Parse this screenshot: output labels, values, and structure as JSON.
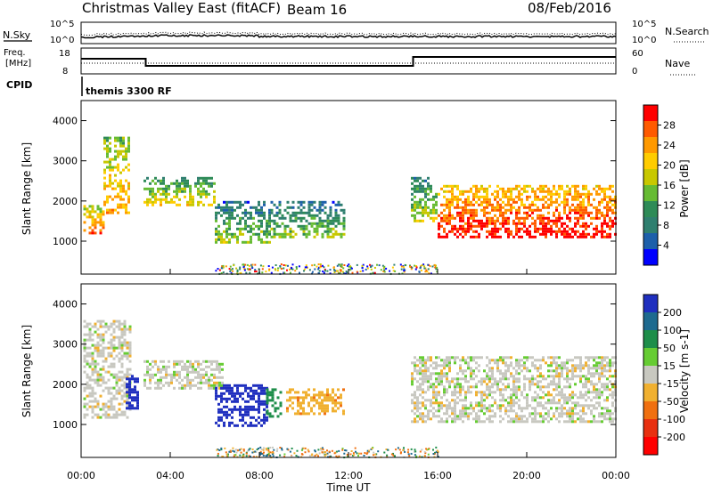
{
  "header": {
    "title": "Christmas Valley East (fitACF)",
    "beam": "Beam 16",
    "date": "08/Feb/2016"
  },
  "aux_panels": {
    "nsky_label": "N.Sky",
    "nsearch_label": "N.Search",
    "freq_label_1": "Freq.",
    "freq_label_2": "[MHz]",
    "nave_label": "Nave",
    "cpid_label": "CPID",
    "cpid_value": "themis 3300 RF",
    "noise_ticks": [
      "10^5",
      "10^0"
    ],
    "noise_ticks_right": [
      "10^5",
      "10^0"
    ],
    "freq_ticks": [
      "18",
      "8"
    ],
    "nave_ticks": [
      "60",
      "0"
    ]
  },
  "time_axis": {
    "label": "Time UT",
    "ticks": [
      "00:00",
      "04:00",
      "08:00",
      "12:00",
      "16:00",
      "20:00",
      "00:00"
    ]
  },
  "colorbars": {
    "power": {
      "label": "Power [dB]",
      "ticks": [
        "28",
        "24",
        "20",
        "16",
        "12",
        "8",
        "4"
      ],
      "colors": [
        "#ff0000",
        "#ff5a00",
        "#ff9900",
        "#ffcc00",
        "#c8c800",
        "#66bb33",
        "#2e8b57",
        "#2f7f6f",
        "#1d5faa",
        "#0000ff"
      ]
    },
    "velocity": {
      "label": "Velocity [m s-1]",
      "ticks": [
        "200",
        "100",
        "50",
        "15",
        "-15",
        "-50",
        "-100",
        "-200"
      ],
      "colors": [
        "#1f2fbf",
        "#1e6a8f",
        "#1e8e4a",
        "#66cc33",
        "#c8c8c0",
        "#f0b030",
        "#f07010",
        "#e83010",
        "#ff0000"
      ]
    }
  },
  "chart_data": [
    {
      "type": "heatmap",
      "title": "Power",
      "ylabel": "Slant Range [km]",
      "xlabel": "",
      "xlim": [
        0,
        24
      ],
      "ylim": [
        180,
        4500
      ],
      "y_ticks": [
        1000,
        2000,
        3000,
        4000
      ],
      "colorbar": {
        "label": "Power [dB]",
        "range": [
          0,
          30
        ]
      },
      "echo_bands": [
        {
          "t": [
            0.1,
            1.0
          ],
          "range_km": [
            1200,
            1900
          ],
          "power_db": 22
        },
        {
          "t": [
            1.0,
            2.2
          ],
          "range_km": [
            1700,
            3600
          ],
          "power_db": 20
        },
        {
          "t": [
            2.8,
            6.0
          ],
          "range_km": [
            1900,
            2600
          ],
          "power_db": 16
        },
        {
          "t": [
            6.0,
            8.5
          ],
          "range_km": [
            1000,
            2000
          ],
          "power_db": 12
        },
        {
          "t": [
            8.5,
            11.8
          ],
          "range_km": [
            1100,
            2000
          ],
          "power_db": 12
        },
        {
          "t": [
            14.8,
            16.0
          ],
          "range_km": [
            1500,
            2600
          ],
          "power_db": 14
        },
        {
          "t": [
            16.0,
            24.0
          ],
          "range_km": [
            1100,
            2400
          ],
          "power_db": 26
        }
      ]
    },
    {
      "type": "heatmap",
      "title": "Velocity",
      "ylabel": "Slant Range [km]",
      "xlabel": "Time UT",
      "xlim": [
        0,
        24
      ],
      "ylim": [
        180,
        4500
      ],
      "y_ticks": [
        1000,
        2000,
        3000,
        4000
      ],
      "colorbar": {
        "label": "Velocity [m s-1]",
        "range": [
          -200,
          200
        ]
      },
      "echo_bands": [
        {
          "t": [
            0.1,
            2.2
          ],
          "range_km": [
            1200,
            3600
          ],
          "velocity": 0
        },
        {
          "t": [
            2.0,
            2.6
          ],
          "range_km": [
            1400,
            2300
          ],
          "velocity": 220
        },
        {
          "t": [
            2.8,
            6.3
          ],
          "range_km": [
            1900,
            2600
          ],
          "velocity": 0
        },
        {
          "t": [
            6.0,
            8.3
          ],
          "range_km": [
            1000,
            2000
          ],
          "velocity": 220
        },
        {
          "t": [
            8.3,
            9.0
          ],
          "range_km": [
            1200,
            1900
          ],
          "velocity": 50
        },
        {
          "t": [
            9.2,
            11.8
          ],
          "range_km": [
            1300,
            1900
          ],
          "velocity": -60
        },
        {
          "t": [
            14.8,
            24.0
          ],
          "range_km": [
            1100,
            2700
          ],
          "velocity": 0
        }
      ]
    }
  ]
}
